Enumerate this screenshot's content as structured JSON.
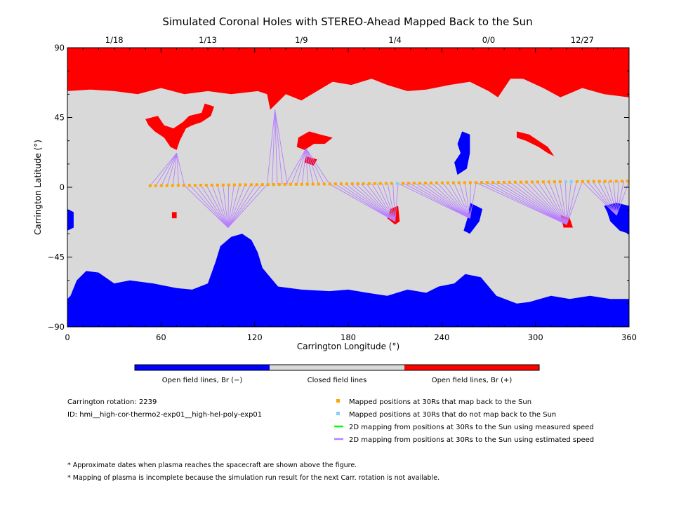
{
  "chart_data": {
    "type": "heatmap",
    "title": "Simulated Coronal Holes with STEREO-Ahead Mapped Back to the Sun",
    "xlabel": "Carrington Longitude (°)",
    "ylabel": "Carrington Latitude (°)",
    "xlim": [
      0,
      360
    ],
    "ylim": [
      -90,
      90
    ],
    "x_ticks": [
      0,
      60,
      120,
      180,
      240,
      300,
      360
    ],
    "y_ticks": [
      -90,
      -45,
      0,
      45,
      90
    ],
    "top_axis": {
      "ticks": [
        {
          "lon": 30,
          "label": "1/18"
        },
        {
          "lon": 90,
          "label": "1/13"
        },
        {
          "lon": 150,
          "label": "1/9"
        },
        {
          "lon": 210,
          "label": "1/4"
        },
        {
          "lon": 270,
          "label": "0/0"
        },
        {
          "lon": 330,
          "label": "12/27"
        }
      ]
    },
    "colors": {
      "closed": "#d9d9d9",
      "open_negative": "#0000ff",
      "open_positive": "#ff0000",
      "mapped": "#ffa500",
      "not_mapped": "#87cefa",
      "measured_line": "#00ff00",
      "estimated_line": "#b77fff"
    },
    "regions": {
      "north_positive_cap": {
        "polarity": "+",
        "lat_min": 60,
        "lon_range": [
          0,
          360
        ]
      },
      "south_negative_cap": {
        "polarity": "-",
        "lat_max": -55,
        "lon_range": [
          0,
          360
        ]
      },
      "mid_latitude_holes": [
        {
          "polarity": "+",
          "lon": 68,
          "lat": 40
        },
        {
          "polarity": "+",
          "lon": 157,
          "lat": 30
        },
        {
          "polarity": "+",
          "lon": 299,
          "lat": 33
        },
        {
          "polarity": "-",
          "lon": 254,
          "lat": 22
        },
        {
          "polarity": "+",
          "lon": 208,
          "lat": -18
        },
        {
          "polarity": "-",
          "lon": 259,
          "lat": -22
        },
        {
          "polarity": "+",
          "lon": 318,
          "lat": -22
        },
        {
          "polarity": "-",
          "lon": 352,
          "lat": -18
        },
        {
          "polarity": "-",
          "lon": 105,
          "lat": -42
        }
      ]
    },
    "spacecraft_track": {
      "lon": [
        53,
        360
      ],
      "lat": [
        1,
        4
      ],
      "not_mapped_lons": [
        212,
        319,
        323
      ]
    },
    "mapping_groups": [
      {
        "footpoint": {
          "lon": 70,
          "lat": 22
        },
        "from_lon": [
          53,
          75
        ]
      },
      {
        "footpoint": {
          "lon": 103,
          "lat": -26
        },
        "from_lon": [
          75,
          128
        ]
      },
      {
        "footpoint": {
          "lon": 133,
          "lat": 50
        },
        "from_lon": [
          128,
          141
        ]
      },
      {
        "footpoint": {
          "lon": 153,
          "lat": 25
        },
        "from_lon": [
          140,
          168
        ]
      },
      {
        "footpoint": {
          "lon": 210,
          "lat": -22
        },
        "from_lon": [
          168,
          212
        ]
      },
      {
        "footpoint": {
          "lon": 258,
          "lat": -20
        },
        "from_lon": [
          212,
          262
        ]
      },
      {
        "footpoint": {
          "lon": 320,
          "lat": -24
        },
        "from_lon": [
          262,
          330
        ]
      },
      {
        "footpoint": {
          "lon": 352,
          "lat": -18
        },
        "from_lon": [
          330,
          360
        ]
      }
    ]
  },
  "colorbar": {
    "labels": [
      "Open field lines, Br (−)",
      "Closed field lines",
      "Open field lines, Br (+)"
    ]
  },
  "info": {
    "rotation": "Carrington rotation: 2239",
    "id": "ID: hmi__high-cor-thermo2-exp01__high-hel-poly-exp01"
  },
  "legend": {
    "items": [
      {
        "label": "Mapped positions at 30Rs that map back to the Sun",
        "type": "square",
        "color": "#ffa500"
      },
      {
        "label": "Mapped positions at 30Rs that do not map back to the Sun",
        "type": "square",
        "color": "#87cefa"
      },
      {
        "label": "2D mapping from positions at 30Rs to the Sun using measured speed",
        "type": "line",
        "color": "#00ff00"
      },
      {
        "label": "2D mapping from positions at 30Rs to the Sun using estimated speed",
        "type": "line",
        "color": "#b77fff"
      }
    ]
  },
  "footnotes": [
    "* Approximate dates when plasma reaches the spacecraft are shown above the figure.",
    "* Mapping of plasma is incomplete because the simulation run result for the next Carr. rotation is not available."
  ]
}
